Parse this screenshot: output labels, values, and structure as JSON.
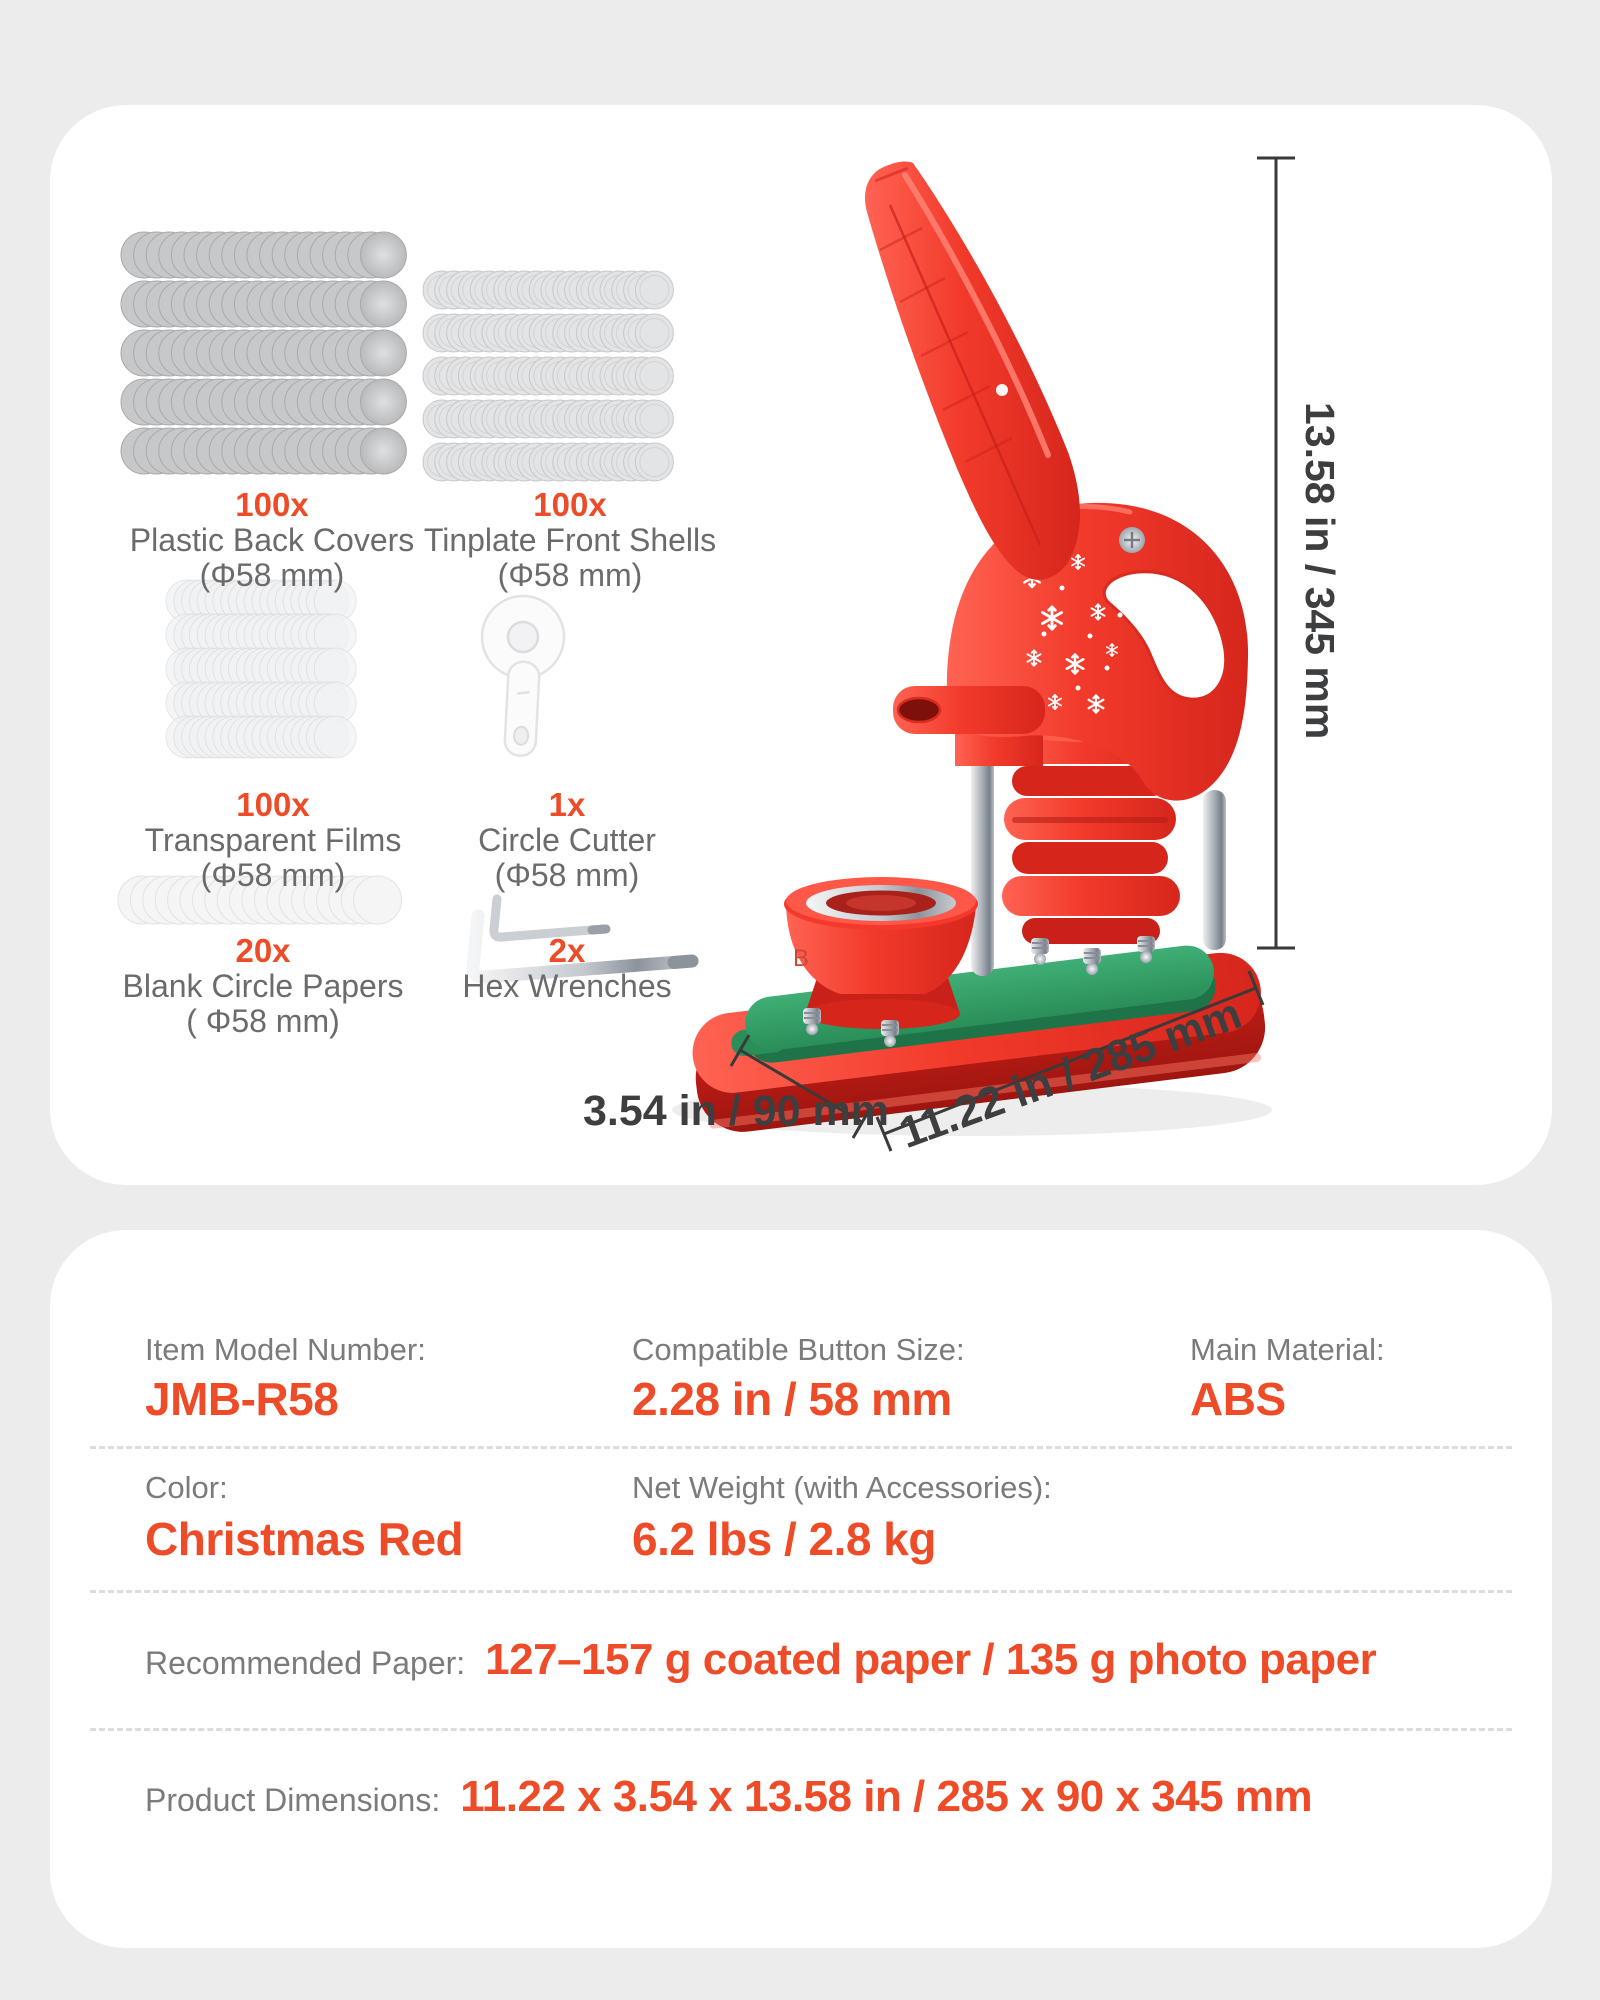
{
  "accessories": [
    {
      "qty": "100x",
      "name": "Plastic Back Covers",
      "size": "(Φ58 mm)"
    },
    {
      "qty": "100x",
      "name": "Tinplate Front Shells",
      "size": "(Φ58 mm)"
    },
    {
      "qty": "100x",
      "name": "Transparent Films",
      "size": "(Φ58 mm)"
    },
    {
      "qty": "1x",
      "name": "Circle Cutter",
      "size": "(Φ58 mm)"
    },
    {
      "qty": "20x",
      "name": "Blank Circle Papers",
      "size": "( Φ58 mm)"
    },
    {
      "qty": "2x",
      "name": "Hex Wrenches",
      "size": ""
    }
  ],
  "dimensions": {
    "height": "13.58 in / 345 mm",
    "length": "11.22 in / 285 mm",
    "depth": "3.54 in / 90 mm"
  },
  "specs": {
    "model": {
      "label": "Item Model Number:",
      "value": "JMB-R58"
    },
    "button_size": {
      "label": "Compatible Button Size:",
      "value": "2.28 in / 58 mm"
    },
    "material": {
      "label": "Main Material:",
      "value": "ABS"
    },
    "color": {
      "label": "Color:",
      "value": "Christmas Red"
    },
    "weight": {
      "label": "Net Weight (with Accessories):",
      "value": "6.2 lbs / 2.8 kg"
    },
    "paper": {
      "label": "Recommended Paper:",
      "value": "127–157 g coated paper / 135 g photo paper"
    },
    "product_dimensions": {
      "label": "Product Dimensions:",
      "value": "11.22 x 3.54 x 13.58 in / 285 x 90 x 345 mm"
    }
  },
  "colors": {
    "accent": "#EE4C28",
    "machine_red": "#F23A2B",
    "plate_green": "#2F9A63",
    "label_gray": "#7B7B7B",
    "dimension_gray": "#3D3E40",
    "background": "#ECECEC"
  }
}
